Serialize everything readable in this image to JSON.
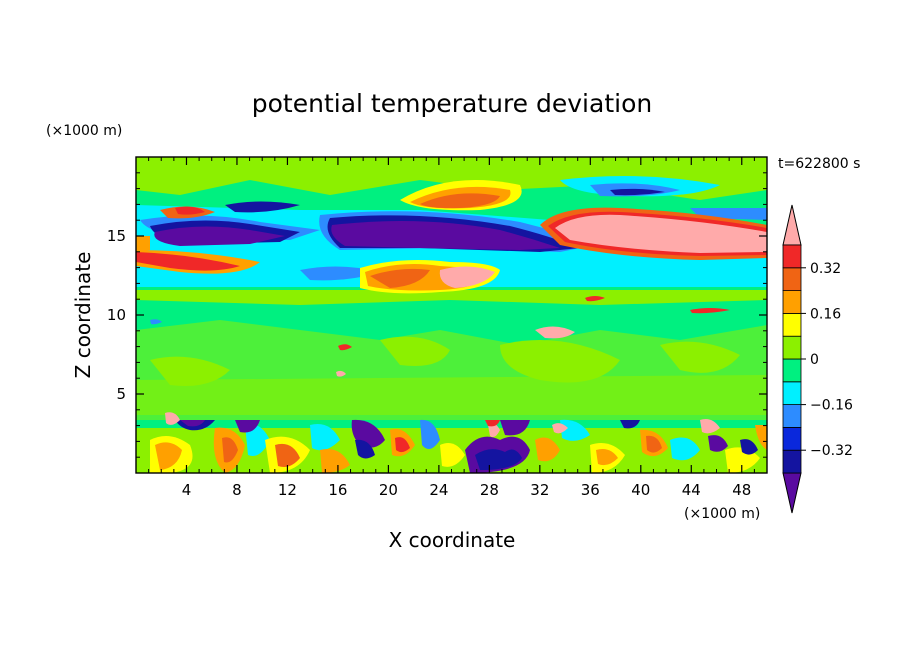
{
  "chart_data": {
    "type": "heatmap",
    "title": "potential temperature deviation",
    "xlabel": "X coordinate",
    "ylabel": "Z coordinate",
    "x_unit": "(×1000 m)",
    "y_unit": "(×1000 m)",
    "time_label": "t=622800 s",
    "xlim": [
      0,
      50
    ],
    "ylim": [
      0,
      20
    ],
    "x_ticks": [
      4,
      8,
      12,
      16,
      20,
      24,
      28,
      32,
      36,
      40,
      44,
      48
    ],
    "y_ticks": [
      5,
      10,
      15
    ],
    "colorbar": {
      "levels": [
        -0.4,
        -0.32,
        -0.24,
        -0.16,
        -0.08,
        0,
        0.08,
        0.16,
        0.24,
        0.32,
        0.4
      ],
      "labeled_ticks": [
        "0.32",
        "0.16",
        "0",
        "−0.16",
        "−0.32"
      ],
      "labeled_values": [
        0.32,
        0.16,
        0,
        -0.16,
        -0.32
      ],
      "colors_low_to_high": [
        "#5a0aa0",
        "#1414a0",
        "#0a28dc",
        "#2d8cff",
        "#00f0ff",
        "#00f080",
        "#8cf000",
        "#ffff00",
        "#ffa000",
        "#f06414",
        "#f02828",
        "#ffaaaa"
      ],
      "extend": "both"
    },
    "field_regions": [
      {
        "x": [
          0,
          50
        ],
        "z": [
          0,
          3
        ],
        "value": "mixed ±0.4 (turbulent layer)"
      },
      {
        "x": [
          0,
          50
        ],
        "z": [
          3,
          11.5
        ],
        "value": "≈0 (weak variation)"
      },
      {
        "x": [
          0,
          50
        ],
        "z": [
          11.5,
          13.5
        ],
        "value": "≈-0.12"
      },
      {
        "x": [
          0,
          12
        ],
        "z": [
          14,
          15
        ],
        "value": "≈-0.36"
      },
      {
        "x": [
          15,
          35
        ],
        "z": [
          14,
          15.5
        ],
        "value": "≈-0.36"
      },
      {
        "x": [
          33,
          50
        ],
        "z": [
          14,
          16
        ],
        "value": "≈0.4"
      },
      {
        "x": [
          22,
          28
        ],
        "z": [
          12,
          13
        ],
        "value": "≈0.4"
      },
      {
        "x": [
          21,
          27
        ],
        "z": [
          16.5,
          17.5
        ],
        "value": "≈0.28"
      }
    ]
  }
}
